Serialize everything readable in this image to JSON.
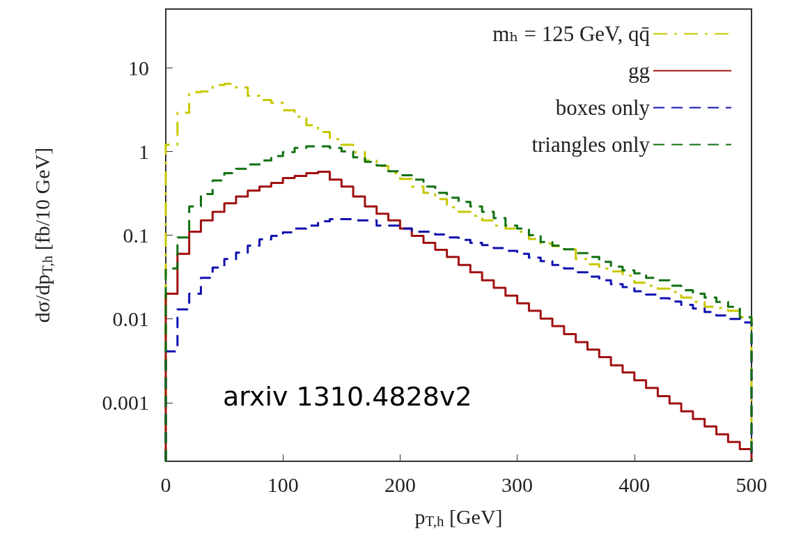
{
  "chart_data": {
    "type": "histogram",
    "xlabel": "p$_{T,h}$ [GeV]",
    "ylabel": "dσ/dp$_{T,h}$ [fb/10 GeV]",
    "annotations": [
      "arxiv 1310.4828v2"
    ],
    "bins": [
      0,
      10,
      20,
      30,
      40,
      50,
      60,
      70,
      80,
      90,
      100,
      110,
      120,
      130,
      140,
      150,
      160,
      170,
      180,
      190,
      200,
      210,
      220,
      230,
      240,
      250,
      260,
      270,
      280,
      290,
      300,
      310,
      320,
      330,
      340,
      350,
      360,
      370,
      380,
      390,
      400,
      410,
      420,
      430,
      440,
      450,
      460,
      470,
      480,
      490,
      500
    ],
    "series": [
      {
        "name": "mₕ = 125 GeV, qq̄",
        "color": "#c8c800",
        "line_style": "dashdot",
        "values": [
          1.2,
          2.9,
          5.1,
          5.2,
          6.2,
          6.4,
          5.8,
          4.6,
          4.1,
          3.8,
          3.1,
          2.6,
          2.05,
          1.7,
          1.4,
          1.2,
          0.98,
          0.78,
          0.67,
          0.55,
          0.47,
          0.38,
          0.32,
          0.27,
          0.215,
          0.19,
          0.17,
          0.15,
          0.13,
          0.12,
          0.11,
          0.09,
          0.08,
          0.074,
          0.068,
          0.052,
          0.045,
          0.04,
          0.037,
          0.033,
          0.027,
          0.025,
          0.023,
          0.021,
          0.018,
          0.016,
          0.014,
          0.0135,
          0.0125,
          0.0105
        ]
      },
      {
        "name": "gg",
        "color": "#a01010",
        "line_style": "solid",
        "values": [
          0.02,
          0.06,
          0.11,
          0.15,
          0.19,
          0.24,
          0.29,
          0.34,
          0.38,
          0.42,
          0.48,
          0.51,
          0.55,
          0.57,
          0.46,
          0.38,
          0.29,
          0.22,
          0.18,
          0.15,
          0.12,
          0.098,
          0.081,
          0.067,
          0.055,
          0.044,
          0.036,
          0.029,
          0.0235,
          0.019,
          0.0154,
          0.0125,
          0.0101,
          0.0082,
          0.0066,
          0.0053,
          0.0043,
          0.0035,
          0.0028,
          0.0023,
          0.00185,
          0.0015,
          0.0012,
          0.00098,
          0.00079,
          0.00064,
          0.00052,
          0.00042,
          0.00034,
          0.00028
        ]
      },
      {
        "name": "boxes only",
        "color": "#1010b0",
        "line_style": "dashed",
        "values": [
          0.0041,
          0.013,
          0.02,
          0.031,
          0.041,
          0.052,
          0.062,
          0.075,
          0.089,
          0.098,
          0.108,
          0.12,
          0.13,
          0.147,
          0.155,
          0.155,
          0.15,
          0.15,
          0.13,
          0.13,
          0.12,
          0.11,
          0.11,
          0.102,
          0.094,
          0.088,
          0.081,
          0.076,
          0.07,
          0.065,
          0.06,
          0.054,
          0.049,
          0.044,
          0.04,
          0.036,
          0.032,
          0.029,
          0.026,
          0.024,
          0.0214,
          0.0195,
          0.0177,
          0.0161,
          0.0147,
          0.0133,
          0.0121,
          0.011,
          0.01,
          0.0091
        ]
      },
      {
        "name": "triangles only",
        "color": "#107010",
        "line_style": "dashed",
        "values": [
          0.04,
          0.094,
          0.22,
          0.31,
          0.45,
          0.55,
          0.62,
          0.7,
          0.78,
          0.88,
          0.98,
          1.1,
          1.15,
          1.15,
          1.1,
          1.0,
          0.85,
          0.75,
          0.68,
          0.58,
          0.52,
          0.46,
          0.38,
          0.32,
          0.28,
          0.25,
          0.22,
          0.19,
          0.16,
          0.13,
          0.12,
          0.1,
          0.083,
          0.075,
          0.068,
          0.061,
          0.055,
          0.048,
          0.042,
          0.038,
          0.035,
          0.031,
          0.029,
          0.025,
          0.022,
          0.02,
          0.018,
          0.016,
          0.014,
          0.0105
        ]
      }
    ],
    "xlim": [
      0,
      500
    ],
    "xticks": [
      0,
      100,
      200,
      300,
      400,
      500
    ],
    "ylim": [
      0.0002,
      50
    ],
    "yticks": [
      0.001,
      0.01,
      0.1,
      1,
      10
    ],
    "log": "y",
    "grid": false,
    "legend": "top right",
    "marker": "none"
  }
}
